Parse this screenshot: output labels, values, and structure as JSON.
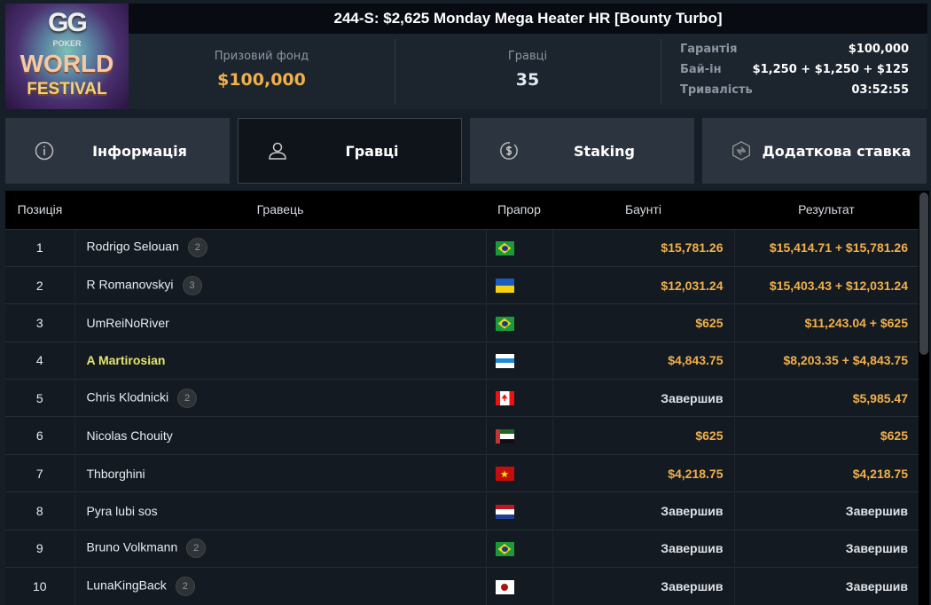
{
  "logo": {
    "text": "GG POKER WORLD FESTIVAL"
  },
  "header": {
    "title": "244-S: $2,625 Monday Mega Heater HR [Bounty Turbo]",
    "prize_label": "Призовий фонд",
    "prize_value": "$100,000",
    "players_label": "Гравці",
    "players_value": "35",
    "details": [
      {
        "k": "Гарантія",
        "v": "$100,000"
      },
      {
        "k": "Бай-ін",
        "v": "$1,250 + $1,250 + $125"
      },
      {
        "k": "Тривалість",
        "v": "03:52:55"
      }
    ]
  },
  "tabs": [
    {
      "label": "Інформація",
      "icon": "info-icon"
    },
    {
      "label": "Гравці",
      "icon": "user-icon",
      "active": true
    },
    {
      "label": "Staking",
      "icon": "dollar-circle-icon"
    },
    {
      "label": "Додаткова ставка",
      "icon": "hexagon-bolt-icon"
    }
  ],
  "table": {
    "headers": [
      "Позиція",
      "Гравець",
      "Прапор",
      "Баунті",
      "Результат"
    ],
    "rows": [
      {
        "pos": "1",
        "name": "Rodrigo Selouan",
        "badge": "2",
        "flag": "BR",
        "bounty": "$15,781.26",
        "result": "$15,414.71 + $15,781.26"
      },
      {
        "pos": "2",
        "name": "R Romanovskyi",
        "badge": "3",
        "flag": "UA",
        "bounty": "$12,031.24",
        "result": "$15,403.43 + $12,031.24"
      },
      {
        "pos": "3",
        "name": "UmReiNoRiver",
        "badge": "",
        "flag": "BR",
        "bounty": "$625",
        "result": "$11,243.04 + $625"
      },
      {
        "pos": "4",
        "name": "A Martirosian",
        "badge": "",
        "flag": "EE",
        "bounty": "$4,843.75",
        "result": "$8,203.35 + $4,843.75",
        "highlight": true
      },
      {
        "pos": "5",
        "name": "Chris Klodnicki",
        "badge": "2",
        "flag": "CA",
        "bounty": "Завершив",
        "result": "$5,985.47"
      },
      {
        "pos": "6",
        "name": "Nicolas Chouity",
        "badge": "",
        "flag": "AE",
        "bounty": "$625",
        "result": "$625"
      },
      {
        "pos": "7",
        "name": "Thborghini",
        "badge": "",
        "flag": "VN",
        "bounty": "$4,218.75",
        "result": "$4,218.75"
      },
      {
        "pos": "8",
        "name": "Pyra lubi sos",
        "badge": "",
        "flag": "NL",
        "bounty": "Завершив",
        "result": "Завершив"
      },
      {
        "pos": "9",
        "name": "Bruno Volkmann",
        "badge": "2",
        "flag": "BR",
        "bounty": "Завершив",
        "result": "Завершив"
      },
      {
        "pos": "10",
        "name": "LunaKingBack",
        "badge": "2",
        "flag": "JP",
        "bounty": "Завершив",
        "result": "Завершив"
      }
    ]
  },
  "colors": {
    "accent": "#f0b04a",
    "highlight": "#e4e46a"
  }
}
